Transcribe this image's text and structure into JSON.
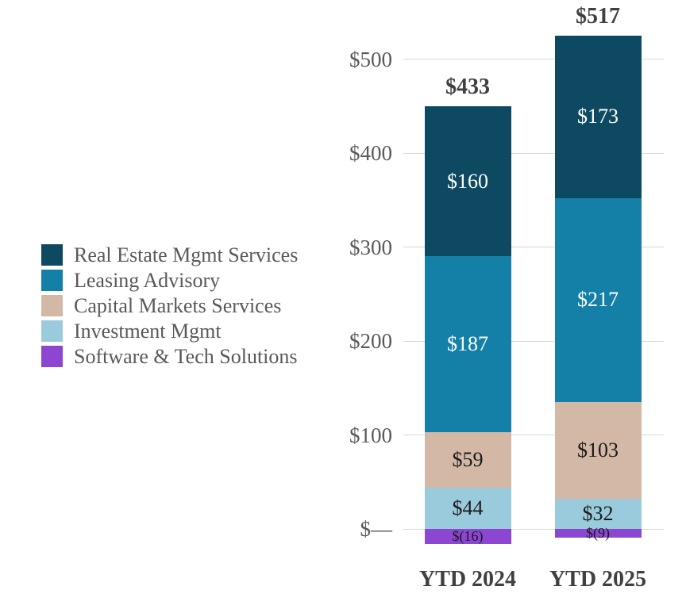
{
  "chart_data": {
    "type": "bar",
    "stacked": true,
    "title": "",
    "categories": [
      "YTD 2024",
      "YTD 2025"
    ],
    "totals": [
      "$433",
      "$517"
    ],
    "series": [
      {
        "name": "Real Estate Mgmt Services",
        "color": "#0D4A62",
        "label_color": "#FFFFFF",
        "values": [
          160,
          173
        ]
      },
      {
        "name": "Leasing Advisory",
        "color": "#1480A8",
        "label_color": "#FFFFFF",
        "values": [
          187,
          217
        ]
      },
      {
        "name": "Capital Markets Services",
        "color": "#D4B8A6",
        "label_color": "#1A1A1A",
        "values": [
          59,
          103
        ]
      },
      {
        "name": "Investment Mgmt",
        "color": "#9ACBDC",
        "label_color": "#1A1A1A",
        "values": [
          44,
          32
        ]
      },
      {
        "name": "Software & Tech Solutions",
        "color": "#8C46D2",
        "label_color": "#1A1A1A",
        "values": [
          -16,
          -9
        ]
      }
    ],
    "segment_labels": [
      [
        "$160",
        "$187",
        "$59",
        "$44",
        "$(16)"
      ],
      [
        "$173",
        "$217",
        "$103",
        "$32",
        "$(9)"
      ]
    ],
    "y_axis": {
      "ticks": [
        0,
        100,
        200,
        300,
        400,
        500
      ],
      "tick_labels": [
        "$—",
        "$100",
        "$200",
        "$300",
        "$400",
        "$500"
      ],
      "ylim": [
        -20,
        550
      ],
      "grid": true
    },
    "legend": {
      "position": "left",
      "items": [
        "Real Estate Mgmt Services",
        "Leasing Advisory",
        "Capital Markets Services",
        "Investment Mgmt",
        "Software & Tech Solutions"
      ]
    },
    "colors": {
      "gridline": "#D9D9D9",
      "axis_text": "#595959",
      "bold_text": "#404040"
    }
  }
}
